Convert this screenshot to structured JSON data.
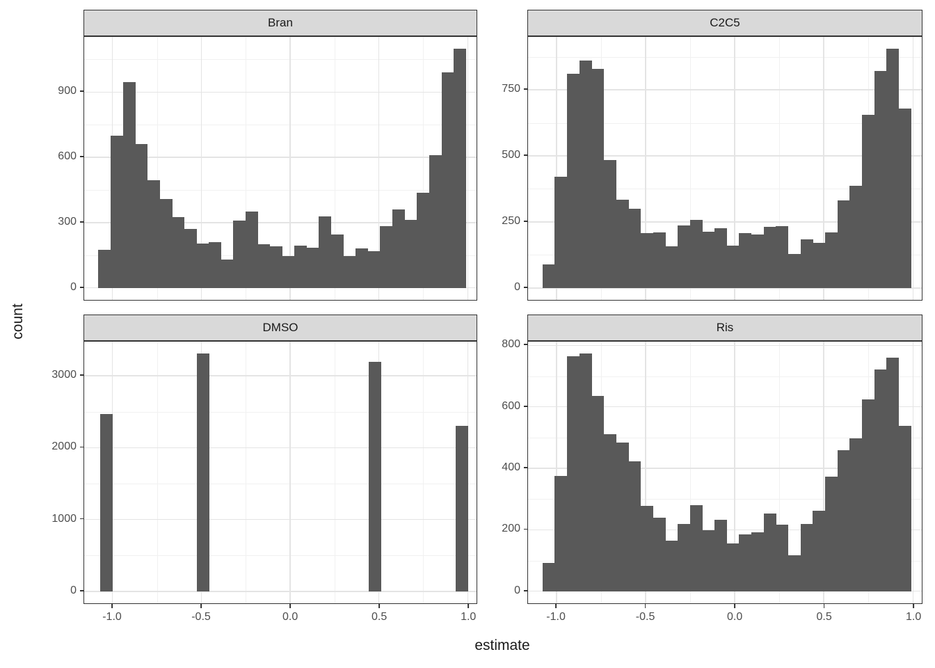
{
  "figure": {
    "x_axis_label": "estimate",
    "y_axis_label": "count",
    "x_tick_labels": [
      "-1.0",
      "-0.5",
      "0.0",
      "0.5",
      "1.0"
    ],
    "x_tick_values": [
      -1.0,
      -0.5,
      0.0,
      0.5,
      1.0
    ],
    "x_minor_values": [
      -0.75,
      -0.25,
      0.25,
      0.75
    ],
    "x_domain": [
      -1.16,
      1.05
    ],
    "colors": {
      "bar_fill": "#595959",
      "strip_background": "#D9D9D9",
      "panel_border": "#333333",
      "grid_major": "#E4E4E4",
      "grid_minor": "#F1F1F1",
      "axis_text": "#4D4D4D",
      "title_text": "#1A1A1A",
      "background": "#FFFFFF"
    }
  },
  "chart_data": [
    {
      "type": "bar",
      "subtype": "histogram",
      "facet": "Bran",
      "xlabel": "estimate",
      "ylabel": "count",
      "x_start": -1.08,
      "bin_width": 0.069,
      "values": [
        175,
        700,
        945,
        660,
        495,
        410,
        325,
        270,
        205,
        210,
        130,
        308,
        350,
        200,
        190,
        145,
        195,
        185,
        330,
        245,
        145,
        182,
        170,
        284,
        360,
        313,
        438,
        609,
        990,
        1098
      ],
      "y_ticks": [
        0,
        300,
        600,
        900
      ],
      "y_minor": [
        150,
        450,
        750,
        1050
      ],
      "y_min": -55,
      "y_max": 1153,
      "grid": true,
      "legend": "none"
    },
    {
      "type": "bar",
      "subtype": "histogram",
      "facet": "C2C5",
      "xlabel": "estimate",
      "ylabel": "count",
      "x_start": -1.08,
      "bin_width": 0.069,
      "values": [
        90,
        420,
        810,
        860,
        830,
        485,
        335,
        300,
        207,
        210,
        157,
        237,
        259,
        212,
        225,
        160,
        208,
        203,
        232,
        235,
        130,
        185,
        170,
        210,
        332,
        388,
        655,
        820,
        905,
        680
      ],
      "y_ticks": [
        0,
        250,
        500,
        750
      ],
      "y_minor": [
        125,
        375,
        625,
        875
      ],
      "y_min": -45,
      "y_max": 950,
      "grid": true,
      "legend": "none"
    },
    {
      "type": "bar",
      "subtype": "histogram-discrete",
      "facet": "DMSO",
      "xlabel": "estimate",
      "ylabel": "count",
      "bin_width": 0.069,
      "bars": [
        {
          "x": -1.035,
          "count": 2470
        },
        {
          "x": -0.49,
          "count": 3310
        },
        {
          "x": 0.478,
          "count": 3195
        },
        {
          "x": 0.968,
          "count": 2305
        }
      ],
      "y_ticks": [
        0,
        1000,
        2000,
        3000
      ],
      "y_minor": [
        500,
        1500,
        2500
      ],
      "y_min": -166,
      "y_max": 3476,
      "grid": true,
      "legend": "none"
    },
    {
      "type": "bar",
      "subtype": "histogram",
      "facet": "Ris",
      "xlabel": "estimate",
      "ylabel": "count",
      "x_start": -1.08,
      "bin_width": 0.069,
      "values": [
        92,
        375,
        765,
        773,
        635,
        510,
        485,
        423,
        278,
        240,
        165,
        218,
        280,
        198,
        233,
        156,
        186,
        193,
        253,
        216,
        118,
        220,
        263,
        374,
        459,
        498,
        624,
        722,
        760,
        539
      ],
      "y_ticks": [
        0,
        200,
        400,
        600,
        800
      ],
      "y_minor": [
        100,
        300,
        500,
        700
      ],
      "y_min": -39,
      "y_max": 812,
      "grid": true,
      "legend": "none"
    }
  ]
}
